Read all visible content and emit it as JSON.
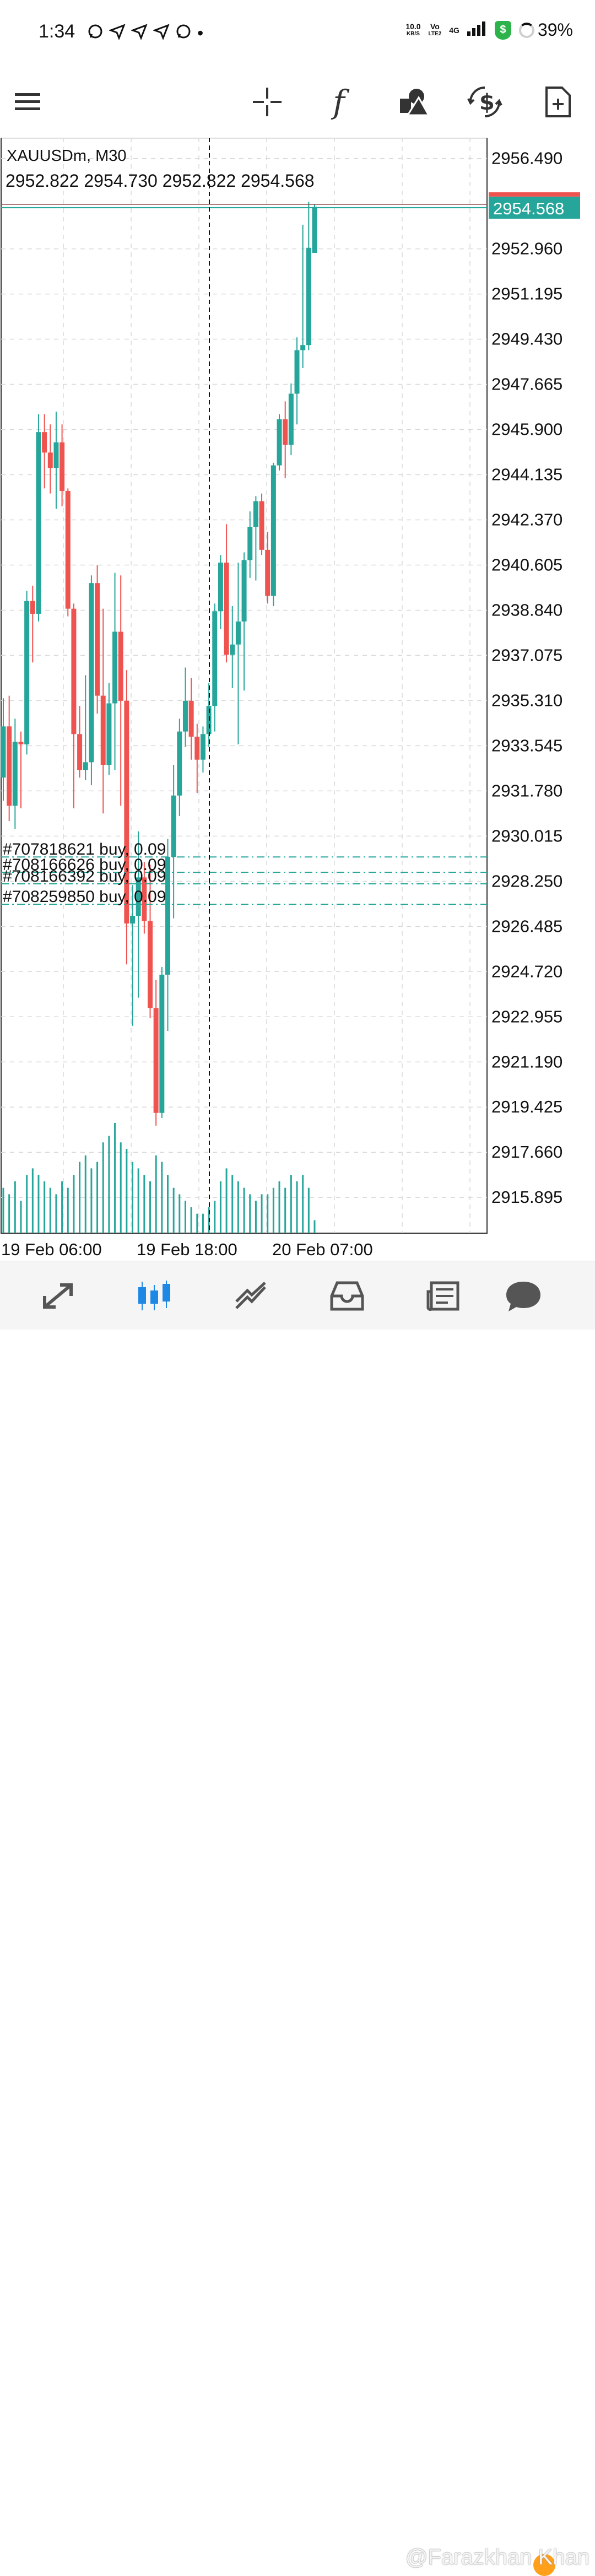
{
  "status_bar": {
    "time": "1:34",
    "notification_icons": [
      "whatsapp-icon",
      "send-icon",
      "send-icon",
      "send-icon",
      "whatsapp-icon"
    ],
    "net_speed_value": "10.0",
    "net_speed_unit": "KB/S",
    "volte_top": "Vo",
    "volte_bottom": "LTE2",
    "signal_label": "4G",
    "battery_percent": "39%",
    "shield_glyph": "$"
  },
  "toolbar": {
    "icons": [
      "menu-icon",
      "crosshair-icon",
      "indicator-function-icon",
      "objects-icon",
      "trade-icon",
      "new-document-icon"
    ],
    "function_glyph": "f"
  },
  "chart_data": {
    "type": "candlestick",
    "symbol_label": "XAUUSDm, M30",
    "ohlc_label": "2952.822 2954.730 2952.822 2954.568",
    "current_price_label": "2954.568",
    "current_price": 2954.568,
    "price_axis_labels": [
      "2956.490",
      "2952.960",
      "2951.195",
      "2949.430",
      "2947.665",
      "2945.900",
      "2944.135",
      "2942.370",
      "2940.605",
      "2938.840",
      "2937.075",
      "2935.310",
      "2933.545",
      "2931.780",
      "2930.015",
      "2928.250",
      "2926.485",
      "2924.720",
      "2922.955",
      "2921.190",
      "2919.425",
      "2917.660",
      "2915.895"
    ],
    "time_axis_labels": [
      "19 Feb 06:00",
      "19 Feb 18:00",
      "20 Feb 07:00"
    ],
    "ylim": [
      2914.5,
      2957.3
    ],
    "positions": [
      {
        "label": "#707818621 buy, 0.09",
        "price": 2929.2
      },
      {
        "label": "#708166626 buy, 0.09",
        "price": 2928.6
      },
      {
        "label": "#708166392 buy, 0.09",
        "price": 2928.15
      },
      {
        "label": "#708259850 buy, 0.09",
        "price": 2927.35
      }
    ],
    "colors": {
      "bull": "#26a69a",
      "bear": "#ef5350",
      "grid": "#d8d8d8",
      "position_line": "#26a69a"
    },
    "candles": [
      {
        "o": 2932.3,
        "h": 2935.4,
        "l": 2931.4,
        "c": 2934.3
      },
      {
        "o": 2934.3,
        "h": 2935.5,
        "l": 2930.6,
        "c": 2931.2
      },
      {
        "o": 2931.2,
        "h": 2934.6,
        "l": 2930.3,
        "c": 2933.7
      },
      {
        "o": 2933.7,
        "h": 2934.1,
        "l": 2931.1,
        "c": 2933.6
      },
      {
        "o": 2933.6,
        "h": 2939.6,
        "l": 2933.2,
        "c": 2939.2
      },
      {
        "o": 2939.2,
        "h": 2939.8,
        "l": 2936.8,
        "c": 2938.7
      },
      {
        "o": 2938.7,
        "h": 2946.5,
        "l": 2938.4,
        "c": 2945.8
      },
      {
        "o": 2945.8,
        "h": 2946.5,
        "l": 2943.6,
        "c": 2945.0
      },
      {
        "o": 2945.0,
        "h": 2946.1,
        "l": 2943.4,
        "c": 2944.4
      },
      {
        "o": 2944.4,
        "h": 2946.6,
        "l": 2942.8,
        "c": 2945.4
      },
      {
        "o": 2945.4,
        "h": 2946.1,
        "l": 2942.9,
        "c": 2943.5
      },
      {
        "o": 2943.5,
        "h": 2943.6,
        "l": 2938.6,
        "c": 2938.9
      },
      {
        "o": 2938.9,
        "h": 2939.1,
        "l": 2931.1,
        "c": 2934.0
      },
      {
        "o": 2934.0,
        "h": 2935.1,
        "l": 2932.3,
        "c": 2932.6
      },
      {
        "o": 2932.6,
        "h": 2936.3,
        "l": 2932.2,
        "c": 2932.9
      },
      {
        "o": 2932.9,
        "h": 2940.2,
        "l": 2932.0,
        "c": 2939.9
      },
      {
        "o": 2939.9,
        "h": 2940.6,
        "l": 2934.8,
        "c": 2935.5
      },
      {
        "o": 2935.5,
        "h": 2938.9,
        "l": 2930.9,
        "c": 2932.8
      },
      {
        "o": 2932.8,
        "h": 2936.0,
        "l": 2932.4,
        "c": 2935.2
      },
      {
        "o": 2935.2,
        "h": 2940.3,
        "l": 2932.6,
        "c": 2938.0
      },
      {
        "o": 2938.0,
        "h": 2940.2,
        "l": 2931.2,
        "c": 2935.3
      },
      {
        "o": 2935.3,
        "h": 2936.5,
        "l": 2925.0,
        "c": 2926.6
      },
      {
        "o": 2926.6,
        "h": 2928.1,
        "l": 2922.6,
        "c": 2926.9
      },
      {
        "o": 2926.9,
        "h": 2930.2,
        "l": 2923.7,
        "c": 2928.4
      },
      {
        "o": 2928.4,
        "h": 2929.0,
        "l": 2926.2,
        "c": 2926.7
      },
      {
        "o": 2926.7,
        "h": 2928.9,
        "l": 2922.9,
        "c": 2923.3
      },
      {
        "o": 2923.3,
        "h": 2924.4,
        "l": 2918.7,
        "c": 2919.2
      },
      {
        "o": 2919.2,
        "h": 2924.9,
        "l": 2919.0,
        "c": 2924.6
      },
      {
        "o": 2924.6,
        "h": 2929.9,
        "l": 2922.4,
        "c": 2929.2
      },
      {
        "o": 2929.2,
        "h": 2932.8,
        "l": 2926.8,
        "c": 2931.6
      },
      {
        "o": 2931.6,
        "h": 2934.6,
        "l": 2930.8,
        "c": 2934.1
      },
      {
        "o": 2934.1,
        "h": 2936.6,
        "l": 2933.5,
        "c": 2935.3
      },
      {
        "o": 2935.3,
        "h": 2936.2,
        "l": 2933.0,
        "c": 2933.9
      },
      {
        "o": 2933.9,
        "h": 2934.4,
        "l": 2931.7,
        "c": 2933.0
      },
      {
        "o": 2933.0,
        "h": 2934.3,
        "l": 2932.5,
        "c": 2934.0
      },
      {
        "o": 2934.0,
        "h": 2936.0,
        "l": 2933.5,
        "c": 2935.1
      },
      {
        "o": 2935.1,
        "h": 2939.1,
        "l": 2934.1,
        "c": 2938.8
      },
      {
        "o": 2938.8,
        "h": 2941.0,
        "l": 2938.1,
        "c": 2940.7
      },
      {
        "o": 2940.7,
        "h": 2942.2,
        "l": 2936.8,
        "c": 2937.1
      },
      {
        "o": 2937.1,
        "h": 2939.0,
        "l": 2935.8,
        "c": 2937.5
      },
      {
        "o": 2937.5,
        "h": 2940.7,
        "l": 2933.6,
        "c": 2938.4
      },
      {
        "o": 2938.4,
        "h": 2941.1,
        "l": 2935.7,
        "c": 2940.8
      },
      {
        "o": 2940.8,
        "h": 2942.7,
        "l": 2940.1,
        "c": 2942.1
      },
      {
        "o": 2942.1,
        "h": 2943.3,
        "l": 2940.0,
        "c": 2943.1
      },
      {
        "o": 2943.1,
        "h": 2943.4,
        "l": 2941.0,
        "c": 2941.2
      },
      {
        "o": 2941.2,
        "h": 2941.9,
        "l": 2939.1,
        "c": 2939.4
      },
      {
        "o": 2939.4,
        "h": 2944.6,
        "l": 2939.0,
        "c": 2944.5
      },
      {
        "o": 2944.5,
        "h": 2946.5,
        "l": 2944.3,
        "c": 2946.3
      },
      {
        "o": 2946.3,
        "h": 2947.0,
        "l": 2944.0,
        "c": 2945.3
      },
      {
        "o": 2945.3,
        "h": 2947.7,
        "l": 2944.9,
        "c": 2947.3
      },
      {
        "o": 2947.3,
        "h": 2949.5,
        "l": 2946.1,
        "c": 2949.0
      },
      {
        "o": 2949.0,
        "h": 2953.9,
        "l": 2948.3,
        "c": 2949.2
      },
      {
        "o": 2949.2,
        "h": 2954.8,
        "l": 2949.0,
        "c": 2953.0
      },
      {
        "o": 2952.8,
        "h": 2954.7,
        "l": 2952.8,
        "c": 2954.6
      }
    ],
    "volumes": [
      7,
      6,
      8,
      5,
      9,
      10,
      9,
      8,
      7,
      6,
      8,
      7,
      9,
      11,
      12,
      10,
      11,
      14,
      15,
      17,
      14,
      13,
      11,
      10,
      9,
      8,
      12,
      11,
      9,
      7,
      6,
      5,
      4,
      3,
      3,
      4,
      5,
      8,
      10,
      9,
      8,
      7,
      6,
      5,
      6,
      6,
      7,
      8,
      7,
      9,
      8,
      9,
      7,
      2
    ]
  },
  "bottom_nav": {
    "items": [
      "quotes-icon",
      "chart-icon",
      "trade-icon",
      "history-icon",
      "news-icon",
      "messages-icon"
    ],
    "watermark": "@Farazkhan Khan"
  }
}
